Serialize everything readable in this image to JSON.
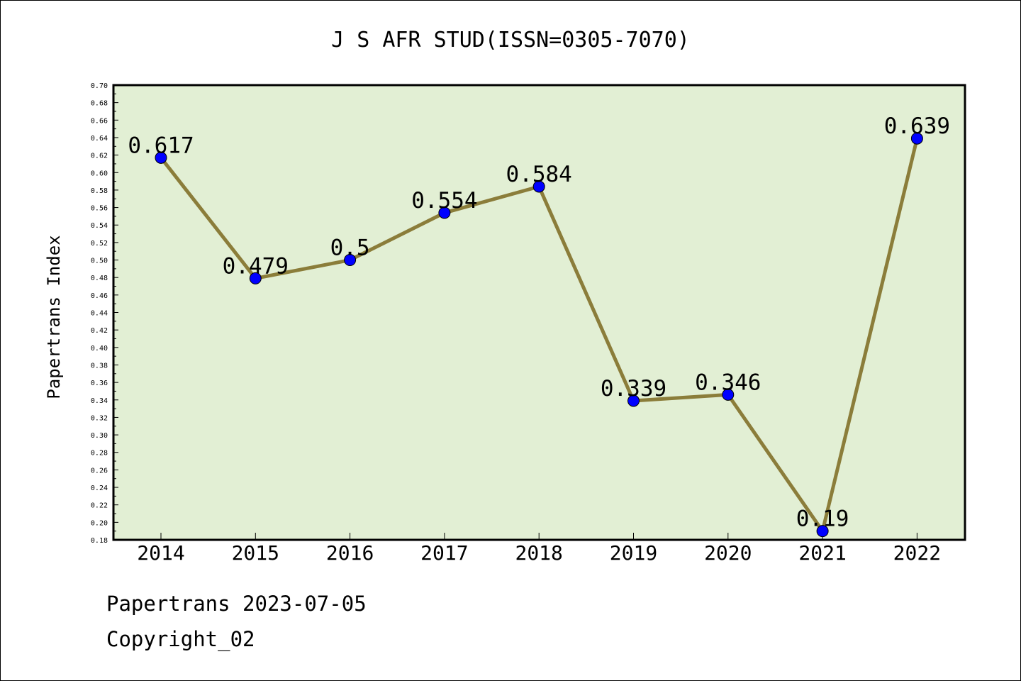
{
  "chart_data": {
    "type": "line",
    "title": "J S AFR STUD(ISSN=0305-7070)",
    "xlabel": "",
    "ylabel": "Papertrans Index",
    "categories": [
      "2014",
      "2015",
      "2016",
      "2017",
      "2018",
      "2019",
      "2020",
      "2021",
      "2022"
    ],
    "series": [
      {
        "values": [
          0.617,
          0.479,
          0.5,
          0.554,
          0.584,
          0.339,
          0.346,
          0.19,
          0.639
        ],
        "labels": [
          "0.617",
          "0.479",
          "0.5",
          "0.554",
          "0.584",
          "0.339",
          "0.346",
          "0.19",
          "0.639"
        ]
      }
    ],
    "ylim": [
      0.18,
      0.7
    ],
    "ytick_step": 0.02,
    "ytick_labels": [
      "0.18",
      "0.20",
      "0.22",
      "0.24",
      "0.26",
      "0.28",
      "0.30",
      "0.32",
      "0.34",
      "0.36",
      "0.38",
      "0.40",
      "0.42",
      "0.44",
      "0.46",
      "0.48",
      "0.50",
      "0.52",
      "0.54",
      "0.56",
      "0.58",
      "0.60",
      "0.62",
      "0.64",
      "0.66",
      "0.68",
      "0.70"
    ],
    "grid": false,
    "legend": "none",
    "colors": {
      "plot_background": "#e2efd4",
      "line": "#8b7d3a",
      "marker": "#0000ff",
      "frame": "#000000"
    }
  },
  "footer": {
    "date_line": "Papertrans 2023-07-05",
    "copyright_line": "Copyright_02"
  }
}
